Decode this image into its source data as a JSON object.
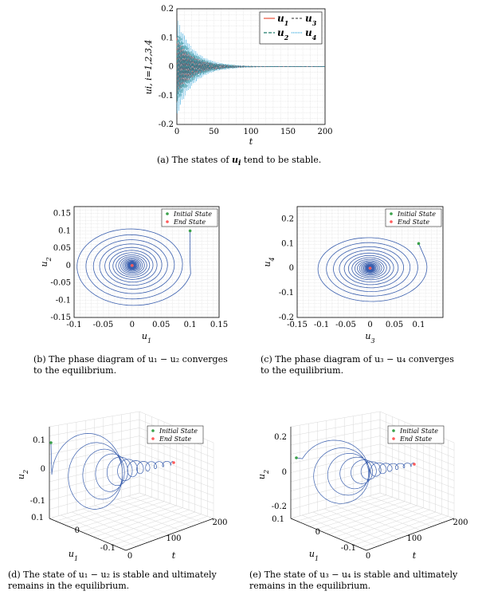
{
  "colors": {
    "u1": "#e8503a",
    "u2": "#1f7a6a",
    "u3": "#555555",
    "u4": "#29a3dc",
    "traj": "#3a5fae",
    "init": "#3aa14a",
    "end": "#ff5a5a",
    "grid": "#d8d8d8"
  },
  "chart_data": [
    {
      "id": "a",
      "type": "line",
      "caption": "(a) The states of u_i tend to be stable.",
      "caption_parts": {
        "prefix": "(a) The states of ",
        "var": "u",
        "sub": "i",
        "suffix": " tend to be stable."
      },
      "xlabel": "t",
      "ylabel": "u_i, i=1,2,3,4",
      "xlim": [
        0,
        200
      ],
      "ylim": [
        -0.2,
        0.2
      ],
      "xticks": [
        "0",
        "50",
        "100",
        "150",
        "200"
      ],
      "yticks": [
        "-0.2",
        "-0.1",
        "0",
        "0.1",
        "0.2"
      ],
      "series": [
        {
          "name": "u_1",
          "amplitude": 0.1,
          "decay": 0.045,
          "period": 2.2
        },
        {
          "name": "u_2",
          "amplitude": 0.13,
          "decay": 0.045,
          "period": 2.2
        },
        {
          "name": "u_3",
          "amplitude": 0.09,
          "decay": 0.045,
          "period": 2.2
        },
        {
          "name": "u_4",
          "amplitude": 0.17,
          "decay": 0.045,
          "period": 2.2
        }
      ],
      "legend": [
        "u_1",
        "u_2",
        "u_3",
        "u_4"
      ],
      "legend_position": "top-right",
      "grid": true
    },
    {
      "id": "b",
      "type": "line",
      "caption": "(b) The phase diagram of u1 − u2 converges to the equilibrium.",
      "caption_lines": [
        "(b) The phase diagram of u₁ − u₂ converges",
        "to the equilibrium."
      ],
      "xlabel": "u_1",
      "ylabel": "u_2",
      "xlim": [
        -0.1,
        0.15
      ],
      "ylim": [
        -0.15,
        0.17
      ],
      "xticks": [
        "-0.1",
        "-0.05",
        "0",
        "0.05",
        "0.1",
        "0.15"
      ],
      "yticks": [
        "-0.15",
        "-0.1",
        "-0.05",
        "0",
        "0.05",
        "0.1",
        "0.15"
      ],
      "initial_state": [
        0.1,
        0.1
      ],
      "end_state": [
        0,
        0
      ],
      "legend": [
        "Initial State",
        "End State"
      ],
      "legend_position": "top-right",
      "grid": true
    },
    {
      "id": "c",
      "type": "line",
      "caption": "(c) The phase diagram of u3 − u4 converges to the equilibrium.",
      "caption_lines": [
        "(c) The phase diagram of u₃ − u₄ converges",
        "to the equilibrium."
      ],
      "xlabel": "u_3",
      "ylabel": "u_4",
      "xlim": [
        -0.15,
        0.15
      ],
      "ylim": [
        -0.2,
        0.25
      ],
      "xticks": [
        "-0.15",
        "-0.1",
        "-0.05",
        "0",
        "0.05",
        "0.1"
      ],
      "yticks": [
        "-0.2",
        "-0.1",
        "0",
        "0.1",
        "0.2"
      ],
      "initial_state": [
        0.1,
        0.1
      ],
      "end_state": [
        0,
        0
      ],
      "legend": [
        "Initial State",
        "End State"
      ],
      "legend_position": "top-right",
      "grid": true
    },
    {
      "id": "d",
      "type": "line",
      "caption": "(d) The state of u1 − u2 is stable and ultimately remains in the equilibrium.",
      "caption_lines": [
        "(d) The state of u₁ − u₂ is stable and ultimately",
        "remains in the equilibrium."
      ],
      "xlabel": "u_1",
      "ylabel": "u_2",
      "zlabel": "t",
      "u1_ticks": [
        "0.1",
        "0",
        "-0.1"
      ],
      "u2_ticks": [
        "0.1",
        "0",
        "-0.1"
      ],
      "t_ticks": [
        "0",
        "100",
        "200"
      ],
      "initial_state": [
        0.1,
        0.1,
        0
      ],
      "end_state": [
        0,
        0,
        200
      ],
      "legend": [
        "Initial State",
        "End State"
      ],
      "legend_position": "top-right",
      "grid": true
    },
    {
      "id": "e",
      "type": "line",
      "caption": "(e) The state of u3 − u4 is stable and ultimately remains in the equilibrium.",
      "caption_lines": [
        "(e) The state of u₃ − u₄ is stable and ultimately",
        "remains in the equilibrium."
      ],
      "xlabel": "u_1",
      "ylabel": "u_2",
      "zlabel": "t",
      "u1_ticks": [
        "0.1",
        "0",
        "-0.1"
      ],
      "u2_ticks": [
        "0.2",
        "0",
        "-0.2"
      ],
      "t_ticks": [
        "0",
        "100",
        "200"
      ],
      "initial_state": [
        0.1,
        0.1,
        0
      ],
      "end_state": [
        0,
        0,
        200
      ],
      "legend": [
        "Initial State",
        "End State"
      ],
      "legend_position": "top-right",
      "grid": true
    }
  ]
}
